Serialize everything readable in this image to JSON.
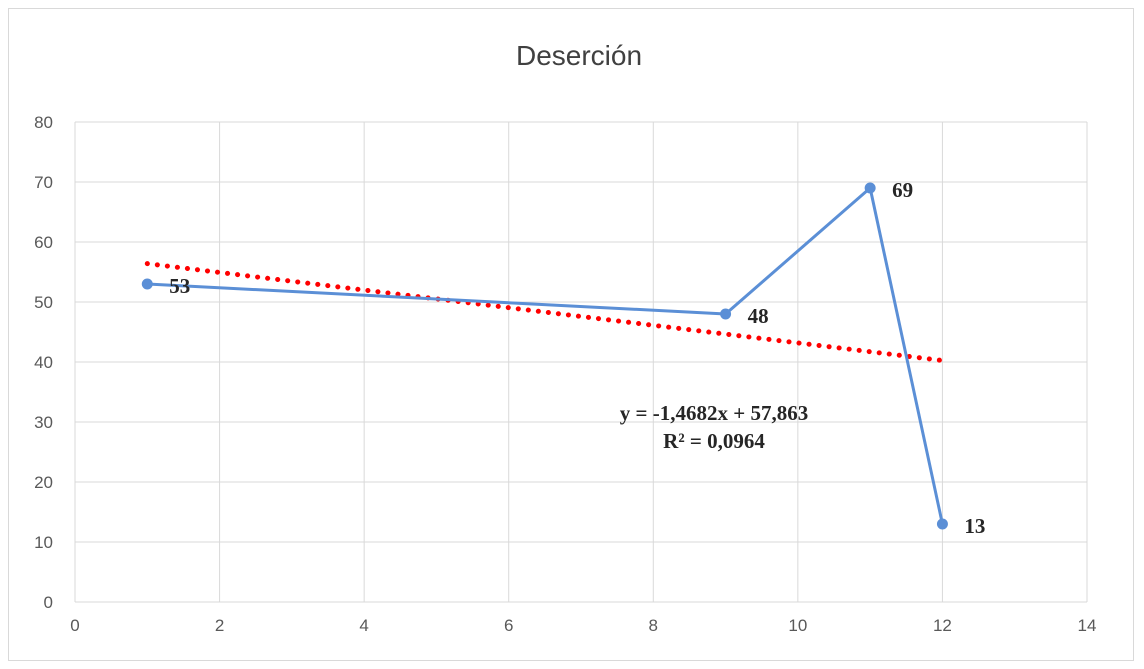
{
  "chart_data": {
    "type": "scatter",
    "title": "Deserción",
    "xlabel": "",
    "ylabel": "",
    "xlim": [
      0,
      14
    ],
    "ylim": [
      0,
      80
    ],
    "x_ticks": [
      0,
      2,
      4,
      6,
      8,
      10,
      12,
      14
    ],
    "y_ticks": [
      0,
      10,
      20,
      30,
      40,
      50,
      60,
      70,
      80
    ],
    "grid": true,
    "legend": "none",
    "series": [
      {
        "mode": "lines+markers",
        "color": "#5b8fd6",
        "points": [
          {
            "x": 1,
            "y": 53,
            "label": "53"
          },
          {
            "x": 9,
            "y": 48,
            "label": "48"
          },
          {
            "x": 11,
            "y": 69,
            "label": "69"
          },
          {
            "x": 12,
            "y": 13,
            "label": "13"
          }
        ]
      }
    ],
    "trendline": {
      "type": "linear",
      "color": "#ff0000",
      "style": "dotted",
      "slope": -1.4682,
      "intercept": 57.863,
      "x_range": [
        1,
        12
      ],
      "equation": "y = -1,4682x + 57,863",
      "r_squared": "R² = 0,0964"
    }
  }
}
